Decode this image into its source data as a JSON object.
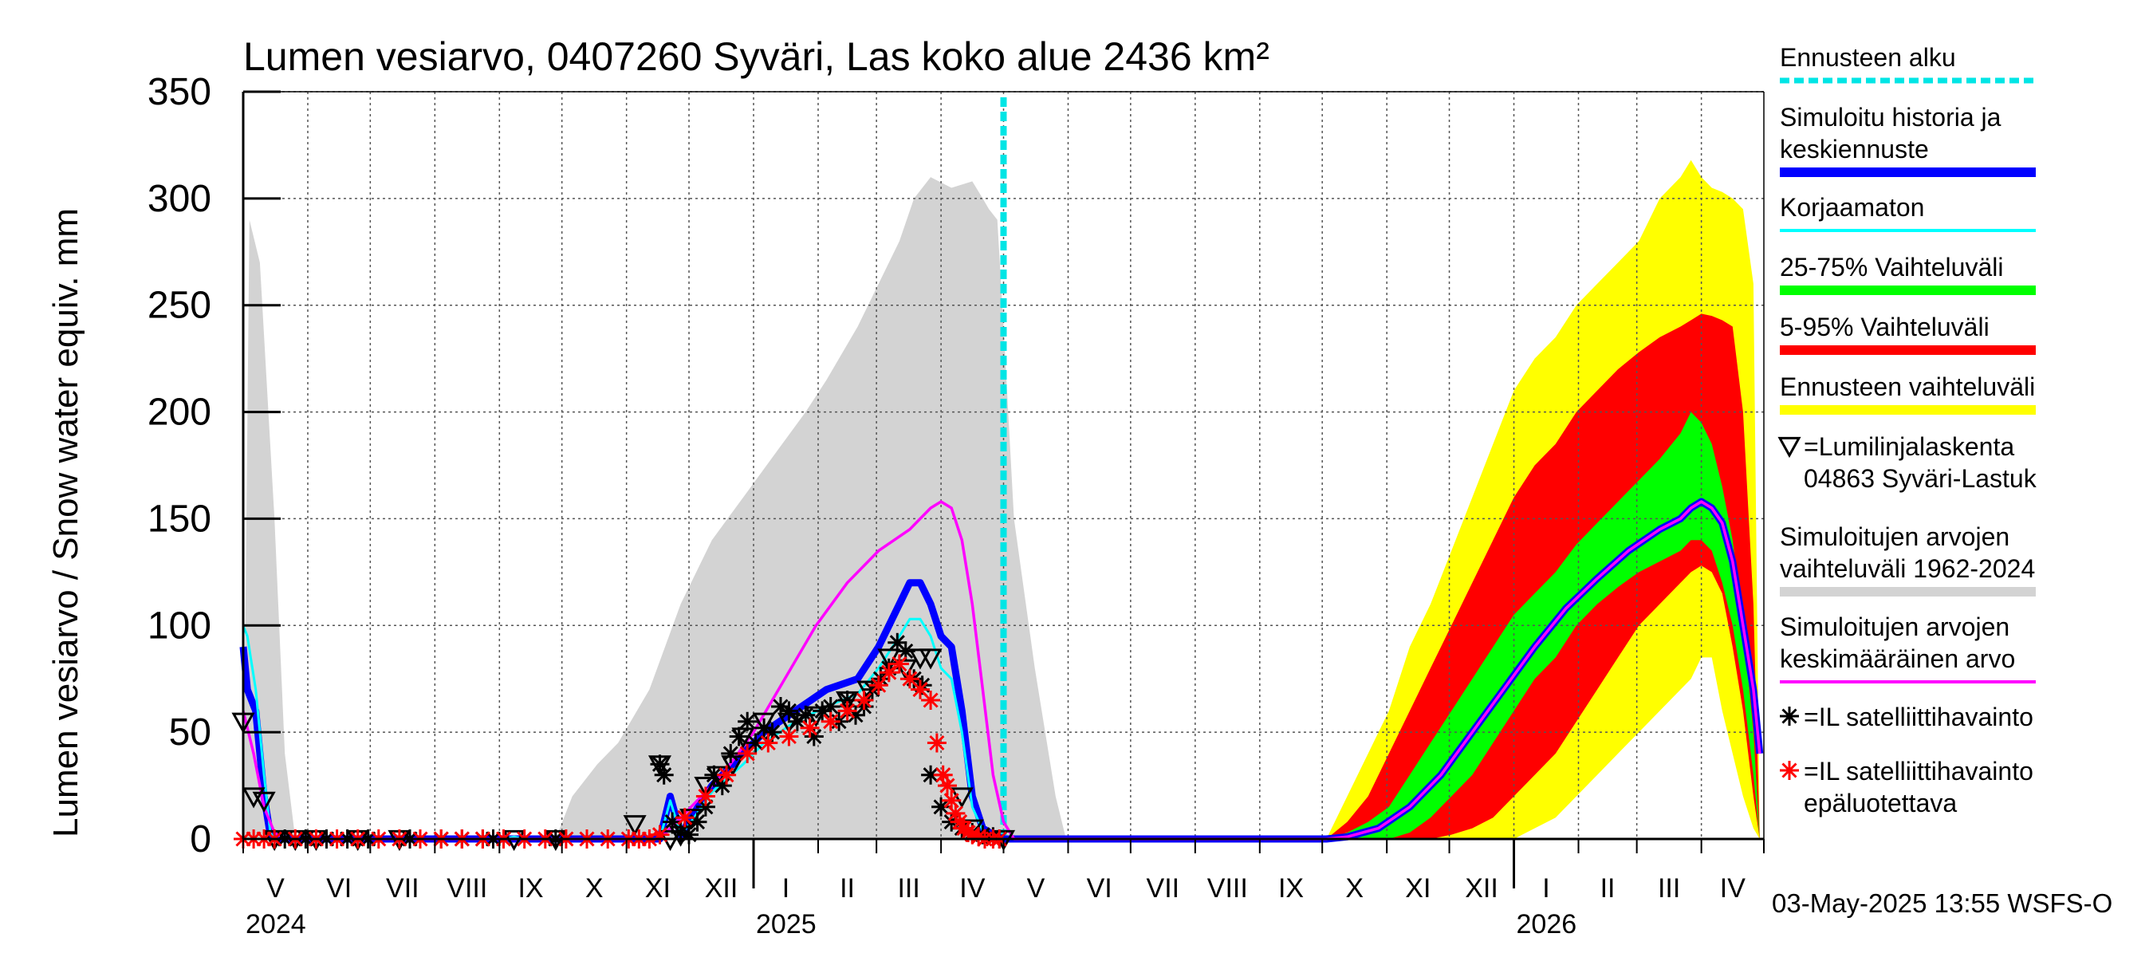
{
  "chart_data": {
    "type": "area",
    "title": "Lumen vesiarvo, 0407260 Syväri, Las koko alue 2436 km²",
    "ylabel": "Lumen vesiarvo / Snow water equiv.    mm",
    "ylim": [
      0,
      350
    ],
    "yticks": [
      0,
      50,
      100,
      150,
      200,
      250,
      300,
      350
    ],
    "x_range_days": [
      0,
      730
    ],
    "forecast_start_day": 365,
    "months": [
      {
        "label": "V",
        "start": 0,
        "end": 31
      },
      {
        "label": "VI",
        "start": 31,
        "end": 61
      },
      {
        "label": "VII",
        "start": 61,
        "end": 92
      },
      {
        "label": "VIII",
        "start": 92,
        "end": 123
      },
      {
        "label": "IX",
        "start": 123,
        "end": 153
      },
      {
        "label": "X",
        "start": 153,
        "end": 184
      },
      {
        "label": "XI",
        "start": 184,
        "end": 214
      },
      {
        "label": "XII",
        "start": 214,
        "end": 245
      },
      {
        "label": "I",
        "start": 245,
        "end": 276
      },
      {
        "label": "II",
        "start": 276,
        "end": 304
      },
      {
        "label": "III",
        "start": 304,
        "end": 335
      },
      {
        "label": "IV",
        "start": 335,
        "end": 365
      },
      {
        "label": "V",
        "start": 365,
        "end": 396
      },
      {
        "label": "VI",
        "start": 396,
        "end": 426
      },
      {
        "label": "VII",
        "start": 426,
        "end": 457
      },
      {
        "label": "VIII",
        "start": 457,
        "end": 488
      },
      {
        "label": "IX",
        "start": 488,
        "end": 518
      },
      {
        "label": "X",
        "start": 518,
        "end": 549
      },
      {
        "label": "XI",
        "start": 549,
        "end": 579
      },
      {
        "label": "XII",
        "start": 579,
        "end": 610
      },
      {
        "label": "I",
        "start": 610,
        "end": 641
      },
      {
        "label": "II",
        "start": 641,
        "end": 669
      },
      {
        "label": "III",
        "start": 669,
        "end": 700
      },
      {
        "label": "IV",
        "start": 700,
        "end": 730
      }
    ],
    "years": [
      {
        "label": "2024",
        "day": 0
      },
      {
        "label": "2025",
        "day": 245
      },
      {
        "label": "2026",
        "day": 610
      }
    ],
    "year_boundaries": [
      245,
      610
    ],
    "series": [
      {
        "name": "Simuloitujen arvojen vaihteluväli 1962-2024",
        "kind": "band",
        "color": "#d3d3d3",
        "x": [
          0,
          3,
          8,
          15,
          20,
          25,
          150,
          158,
          170,
          180,
          195,
          210,
          225,
          240,
          255,
          270,
          280,
          295,
          305,
          315,
          322,
          330,
          340,
          350,
          355,
          358,
          362,
          365,
          370,
          380,
          390,
          395
        ],
        "upper": [
          0,
          290,
          270,
          150,
          40,
          0,
          0,
          20,
          35,
          45,
          70,
          110,
          140,
          160,
          180,
          200,
          215,
          240,
          260,
          280,
          300,
          310,
          305,
          308,
          300,
          295,
          290,
          240,
          150,
          80,
          20,
          0
        ],
        "lower": [
          0,
          0,
          0,
          0,
          0,
          0,
          0,
          0,
          0,
          0,
          0,
          0,
          0,
          0,
          0,
          0,
          0,
          0,
          0,
          0,
          0,
          0,
          0,
          0,
          0,
          0,
          0,
          0,
          0,
          0,
          0,
          0
        ]
      },
      {
        "name": "Ennusteen vaihteluväli",
        "kind": "band",
        "color": "#ffff00",
        "x": [
          520,
          530,
          540,
          550,
          560,
          570,
          580,
          590,
          600,
          610,
          620,
          630,
          640,
          650,
          660,
          670,
          680,
          690,
          695,
          700,
          705,
          710,
          715,
          720,
          725,
          728
        ],
        "upper": [
          0,
          20,
          40,
          60,
          90,
          110,
          135,
          160,
          185,
          210,
          225,
          235,
          250,
          260,
          270,
          280,
          300,
          310,
          318,
          310,
          305,
          303,
          300,
          295,
          260,
          0
        ],
        "lower": [
          0,
          0,
          0,
          0,
          0,
          0,
          0,
          0,
          0,
          0,
          5,
          10,
          20,
          30,
          40,
          50,
          60,
          70,
          75,
          85,
          85,
          60,
          40,
          20,
          5,
          0
        ]
      },
      {
        "name": "5-95% Vaihteluväli",
        "kind": "band",
        "color": "#ff0000",
        "x": [
          520,
          530,
          540,
          550,
          560,
          570,
          580,
          590,
          600,
          610,
          620,
          630,
          640,
          650,
          660,
          670,
          680,
          690,
          695,
          700,
          705,
          710,
          715,
          720,
          725,
          728
        ],
        "upper": [
          0,
          8,
          20,
          40,
          60,
          80,
          100,
          120,
          140,
          160,
          175,
          185,
          200,
          210,
          220,
          228,
          235,
          240,
          243,
          246,
          245,
          243,
          240,
          200,
          110,
          0
        ],
        "lower": [
          0,
          0,
          0,
          0,
          0,
          0,
          2,
          5,
          10,
          20,
          30,
          40,
          55,
          70,
          85,
          100,
          110,
          120,
          125,
          128,
          125,
          115,
          90,
          60,
          20,
          0
        ]
      },
      {
        "name": "25-75% Vaihteluväli",
        "kind": "band",
        "color": "#00ff00",
        "x": [
          520,
          530,
          540,
          550,
          560,
          570,
          580,
          590,
          600,
          610,
          620,
          630,
          640,
          650,
          660,
          670,
          680,
          690,
          695,
          700,
          705,
          710,
          715,
          720,
          725,
          728
        ],
        "upper": [
          0,
          3,
          8,
          15,
          30,
          45,
          60,
          75,
          90,
          105,
          115,
          125,
          138,
          148,
          158,
          168,
          178,
          190,
          200,
          195,
          185,
          165,
          140,
          100,
          50,
          0
        ],
        "lower": [
          0,
          0,
          0,
          0,
          3,
          10,
          20,
          30,
          45,
          60,
          75,
          85,
          100,
          110,
          118,
          125,
          130,
          135,
          140,
          140,
          135,
          120,
          100,
          70,
          30,
          0
        ]
      },
      {
        "name": "Simuloitu historia ja keskiennuste",
        "kind": "line",
        "color": "#0000ff",
        "width": 9,
        "x": [
          0,
          2,
          6,
          10,
          13,
          15,
          25,
          200,
          205,
          210,
          215,
          225,
          240,
          250,
          265,
          280,
          295,
          305,
          315,
          320,
          325,
          330,
          335,
          340,
          345,
          350,
          355,
          360,
          365,
          370,
          520,
          530,
          545,
          560,
          575,
          590,
          605,
          620,
          635,
          650,
          665,
          680,
          690,
          695,
          700,
          705,
          710,
          715,
          720,
          725,
          728
        ],
        "y": [
          90,
          70,
          60,
          20,
          2,
          0,
          0,
          0,
          20,
          2,
          10,
          25,
          40,
          50,
          60,
          70,
          75,
          90,
          110,
          120,
          120,
          110,
          95,
          90,
          60,
          20,
          5,
          2,
          0,
          0,
          0,
          1,
          5,
          15,
          30,
          50,
          70,
          90,
          108,
          122,
          135,
          145,
          150,
          155,
          158,
          155,
          148,
          130,
          100,
          70,
          40
        ]
      },
      {
        "name": "Korjaamaton",
        "kind": "line",
        "color": "#00ffff",
        "width": 3,
        "x": [
          0,
          2,
          6,
          10,
          13,
          15,
          25,
          125,
          130,
          135,
          200,
          205,
          210,
          215,
          225,
          240,
          250,
          265,
          280,
          295,
          305,
          315,
          320,
          325,
          330,
          335,
          340,
          345,
          350,
          355,
          360,
          365,
          370
        ],
        "y": [
          100,
          95,
          70,
          30,
          3,
          0,
          0,
          0,
          1,
          0,
          0,
          18,
          2,
          8,
          22,
          35,
          45,
          55,
          62,
          68,
          80,
          95,
          103,
          103,
          95,
          80,
          75,
          50,
          15,
          4,
          1,
          0,
          0
        ]
      },
      {
        "name": "Simuloitujen arvojen keskimääräinen arvo",
        "kind": "line",
        "color": "#ff00ff",
        "width": 3.5,
        "x": [
          0,
          5,
          10,
          15,
          20,
          200,
          215,
          230,
          245,
          260,
          275,
          290,
          305,
          320,
          330,
          335,
          340,
          345,
          350,
          355,
          360,
          365,
          370,
          520,
          530,
          545,
          560,
          575,
          590,
          605,
          620,
          635,
          650,
          665,
          680,
          690,
          695,
          700,
          705,
          710,
          715,
          720,
          725,
          728
        ],
        "y": [
          60,
          40,
          15,
          3,
          0,
          0,
          15,
          30,
          50,
          75,
          100,
          120,
          135,
          145,
          155,
          158,
          155,
          140,
          110,
          70,
          30,
          8,
          0,
          0,
          1,
          5,
          15,
          30,
          50,
          70,
          90,
          108,
          122,
          135,
          145,
          150,
          155,
          158,
          155,
          148,
          130,
          100,
          70,
          40
        ]
      },
      {
        "name": "Lumilinjalaskenta 04863 Syväri-Lastuk",
        "kind": "marker",
        "marker": "triangle",
        "color": "#000000",
        "x": [
          0,
          5,
          10,
          15,
          25,
          35,
          55,
          75,
          130,
          150,
          188,
          200,
          205,
          210,
          215,
          222,
          228,
          235,
          240,
          250,
          262,
          275,
          290,
          300,
          310,
          318,
          325,
          330,
          345,
          350,
          365
        ],
        "y": [
          55,
          20,
          18,
          0,
          0,
          0,
          0,
          0,
          0,
          0,
          7,
          35,
          0,
          2,
          10,
          25,
          30,
          35,
          48,
          55,
          55,
          58,
          65,
          70,
          85,
          80,
          85,
          85,
          20,
          5,
          0
        ]
      },
      {
        "name": "IL satelliittihavainto",
        "kind": "marker",
        "marker": "star",
        "color": "#000000",
        "x": [
          20,
          30,
          40,
          50,
          60,
          80,
          95,
          105,
          115,
          120,
          150,
          200,
          202,
          206,
          210,
          214,
          218,
          222,
          226,
          230,
          234,
          238,
          242,
          246,
          250,
          254,
          258,
          262,
          266,
          270,
          274,
          278,
          282,
          286,
          290,
          294,
          298,
          302,
          306,
          310,
          314,
          318,
          322,
          326,
          330,
          335,
          340,
          345,
          350,
          355,
          360,
          363
        ],
        "y": [
          0,
          0,
          0,
          0,
          0,
          0,
          0,
          0,
          0,
          0,
          0,
          35,
          30,
          8,
          3,
          2,
          8,
          15,
          30,
          25,
          40,
          48,
          55,
          45,
          52,
          50,
          62,
          60,
          55,
          58,
          48,
          60,
          62,
          55,
          65,
          58,
          62,
          70,
          75,
          80,
          92,
          88,
          75,
          72,
          30,
          15,
          8,
          5,
          3,
          2,
          1,
          0
        ]
      },
      {
        "name": "IL satelliittihavainto epäluotettava",
        "kind": "marker",
        "marker": "star",
        "color": "#ff0000",
        "x": [
          0,
          5,
          10,
          15,
          25,
          35,
          45,
          55,
          65,
          75,
          85,
          95,
          105,
          115,
          125,
          135,
          145,
          155,
          165,
          175,
          185,
          190,
          195,
          200,
          212,
          222,
          232,
          242,
          252,
          262,
          272,
          282,
          290,
          298,
          305,
          310,
          315,
          320,
          325,
          330,
          333,
          336,
          338,
          340,
          342,
          344,
          346,
          348,
          350,
          353,
          356,
          360,
          363
        ],
        "y": [
          0,
          0,
          0,
          0,
          0,
          0,
          0,
          0,
          0,
          0,
          0,
          0,
          0,
          0,
          0,
          0,
          0,
          0,
          0,
          0,
          0,
          0,
          0,
          2,
          10,
          20,
          30,
          40,
          45,
          48,
          52,
          55,
          60,
          65,
          72,
          78,
          82,
          75,
          70,
          65,
          45,
          30,
          25,
          18,
          12,
          8,
          5,
          3,
          2,
          1,
          0,
          0,
          0
        ]
      }
    ],
    "legend": [
      {
        "label": "Ennusteen alku",
        "style": "dashed",
        "color": "#00e5e5"
      },
      {
        "label": "Simuloitu historia ja",
        "label2": "keskiennuste",
        "style": "thick",
        "color": "#0000ff"
      },
      {
        "label": "Korjaamaton",
        "style": "thin",
        "color": "#00ffff"
      },
      {
        "label": "25-75% Vaihteluväli",
        "style": "thick",
        "color": "#00ff00"
      },
      {
        "label": "5-95% Vaihteluväli",
        "style": "thick",
        "color": "#ff0000"
      },
      {
        "label": "Ennusteen vaihteluväli",
        "style": "thick",
        "color": "#ffff00"
      },
      {
        "label": "=Lumilinjalaskenta",
        "label2": "04863 Syväri-Lastuk",
        "style": "triangle",
        "color": "#000000"
      },
      {
        "label": "Simuloitujen arvojen",
        "label2": "vaihteluväli 1962-2024",
        "style": "thick",
        "color": "#d3d3d3"
      },
      {
        "label": "Simuloitujen arvojen",
        "label2": "keskimääräinen arvo",
        "style": "thin",
        "color": "#ff00ff"
      },
      {
        "label": "=IL satelliittihavainto",
        "style": "star",
        "color": "#000000"
      },
      {
        "label": "=IL satelliittihavainto",
        "label2": "epäluotettava",
        "style": "star",
        "color": "#ff0000"
      }
    ],
    "footer": "03-May-2025 13:55 WSFS-O"
  }
}
